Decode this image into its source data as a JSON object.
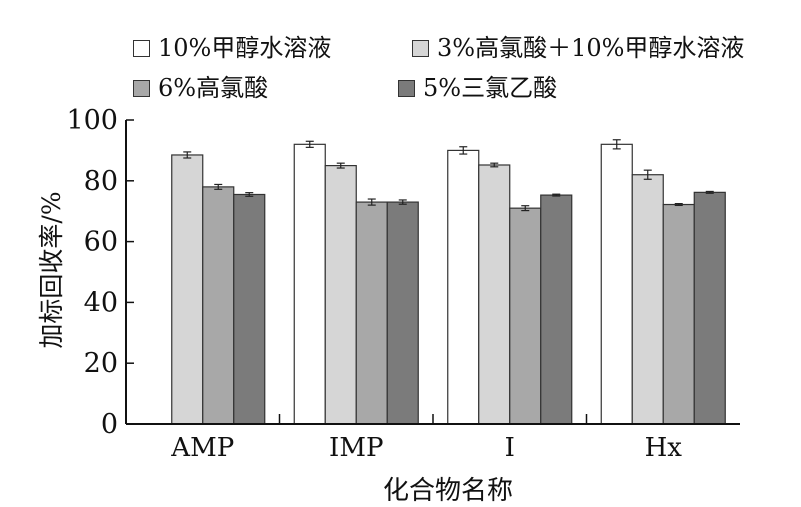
{
  "chart_data": {
    "type": "bar",
    "categories": [
      "AMP",
      "IMP",
      "I",
      "Hx"
    ],
    "series": [
      {
        "name": "10%甲醇水溶液",
        "color": "#ffffff",
        "values": [
          null,
          92,
          90,
          92
        ],
        "errors": [
          null,
          1,
          1.2,
          1.5
        ]
      },
      {
        "name": "3%高氯酸＋10%甲醇水溶液",
        "color": "#d6d6d6",
        "values": [
          88.5,
          85,
          85.2,
          82
        ],
        "errors": [
          1,
          0.8,
          0.6,
          1.5
        ]
      },
      {
        "name": "6%高氯酸",
        "color": "#a8a8a8",
        "values": [
          78,
          73,
          71,
          72.2
        ],
        "errors": [
          0.8,
          1,
          0.8,
          0.3
        ]
      },
      {
        "name": "5%三氯乙酸",
        "color": "#7b7b7b",
        "values": [
          75.5,
          73,
          75.3,
          76.2
        ],
        "errors": [
          0.6,
          0.7,
          0.3,
          0.3
        ]
      }
    ],
    "xlabel": "化合物名称",
    "ylabel": "加标回收率/%",
    "ylim": [
      0,
      100
    ],
    "yticks": [
      "0",
      "20",
      "40",
      "60",
      "80",
      "100"
    ],
    "grid": false,
    "legend": "top"
  }
}
